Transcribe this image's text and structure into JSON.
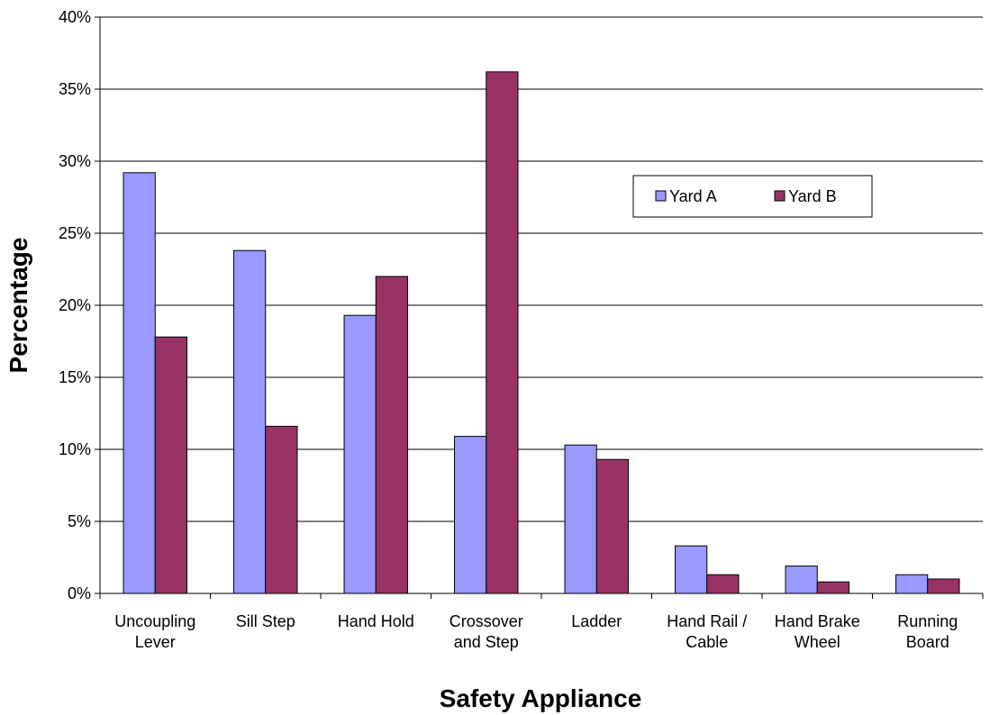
{
  "chart_data": {
    "type": "bar",
    "categories": [
      [
        "Uncoupling",
        "Lever"
      ],
      [
        "Sill Step"
      ],
      [
        "Hand Hold"
      ],
      [
        "Crossover",
        "and Step"
      ],
      [
        "Ladder"
      ],
      [
        "Hand Rail /",
        "Cable"
      ],
      [
        "Hand Brake",
        "Wheel"
      ],
      [
        "Running",
        "Board"
      ]
    ],
    "series": [
      {
        "name": "Yard A",
        "color": "#9999ff",
        "values": [
          29.2,
          23.8,
          19.3,
          10.9,
          10.3,
          3.3,
          1.9,
          1.3
        ]
      },
      {
        "name": "Yard B",
        "color": "#993366",
        "values": [
          17.8,
          11.6,
          22.0,
          36.2,
          9.3,
          1.3,
          0.8,
          1.0
        ]
      }
    ],
    "title": "",
    "xlabel": "Safety Appliance",
    "ylabel": "Percentage",
    "ylim": [
      0,
      40
    ],
    "yticks": [
      0,
      5,
      10,
      15,
      20,
      25,
      30,
      35,
      40
    ],
    "ytick_format": "percent",
    "grid": true,
    "legend_position": "upper-right"
  }
}
